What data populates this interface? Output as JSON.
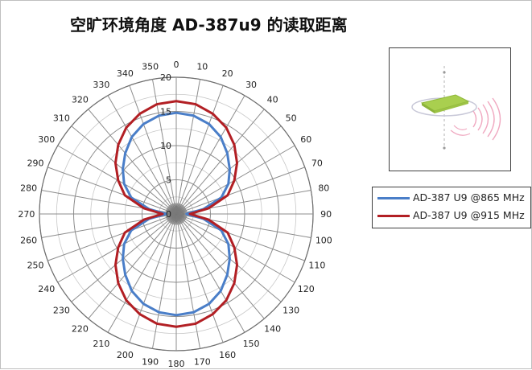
{
  "title": "空旷环境角度 AD-387u9 的读取距离",
  "colors": {
    "series_865": "#4a7ec8",
    "series_915": "#b21f24",
    "grid": "#8c8c8c",
    "border": "#404040"
  },
  "chart_data": {
    "type": "polar-line",
    "title": "空旷环境角度 AD-387u9 的读取距离",
    "angle_ticks": [
      0,
      10,
      20,
      30,
      40,
      50,
      60,
      70,
      80,
      90,
      100,
      110,
      120,
      130,
      140,
      150,
      160,
      170,
      180,
      190,
      200,
      210,
      220,
      230,
      240,
      250,
      260,
      270,
      280,
      290,
      300,
      310,
      320,
      330,
      340,
      350
    ],
    "radial_ticks": [
      0,
      5,
      10,
      15,
      20
    ],
    "rlim": [
      0,
      20
    ],
    "grid": true,
    "legend_position": "right",
    "series": [
      {
        "name": "AD-387 U9 @865 MHz",
        "color": "#4a7ec8",
        "theta": [
          0,
          10,
          20,
          30,
          40,
          50,
          60,
          70,
          80,
          90,
          100,
          110,
          120,
          130,
          140,
          150,
          160,
          170,
          180,
          190,
          200,
          210,
          220,
          230,
          240,
          250,
          260,
          270,
          280,
          290,
          300,
          310,
          320,
          330,
          340,
          350
        ],
        "r": [
          14.8,
          14.6,
          14.0,
          13.0,
          11.6,
          10.2,
          8.8,
          7.0,
          4.0,
          1.5,
          4.0,
          7.0,
          8.8,
          10.2,
          11.6,
          13.0,
          14.0,
          14.6,
          14.8,
          14.6,
          14.0,
          13.0,
          11.6,
          10.2,
          8.8,
          7.0,
          4.0,
          1.5,
          4.0,
          7.0,
          8.8,
          10.2,
          11.6,
          13.0,
          14.0,
          14.6
        ]
      },
      {
        "name": "AD-387 U9 @915 MHz",
        "color": "#b21f24",
        "theta": [
          0,
          10,
          20,
          30,
          40,
          50,
          60,
          70,
          80,
          90,
          100,
          110,
          120,
          130,
          140,
          150,
          160,
          170,
          180,
          190,
          200,
          210,
          220,
          230,
          240,
          250,
          260,
          270,
          280,
          290,
          300,
          310,
          320,
          330,
          340,
          350
        ],
        "r": [
          16.5,
          16.3,
          15.6,
          14.6,
          13.2,
          11.6,
          9.8,
          8.0,
          4.8,
          2.0,
          4.8,
          8.0,
          9.8,
          11.6,
          13.2,
          14.6,
          15.6,
          16.3,
          16.5,
          16.3,
          15.6,
          14.6,
          13.2,
          11.6,
          9.8,
          8.0,
          4.8,
          2.0,
          4.8,
          8.0,
          9.8,
          11.6,
          13.2,
          14.6,
          15.6,
          16.3
        ]
      }
    ]
  }
}
